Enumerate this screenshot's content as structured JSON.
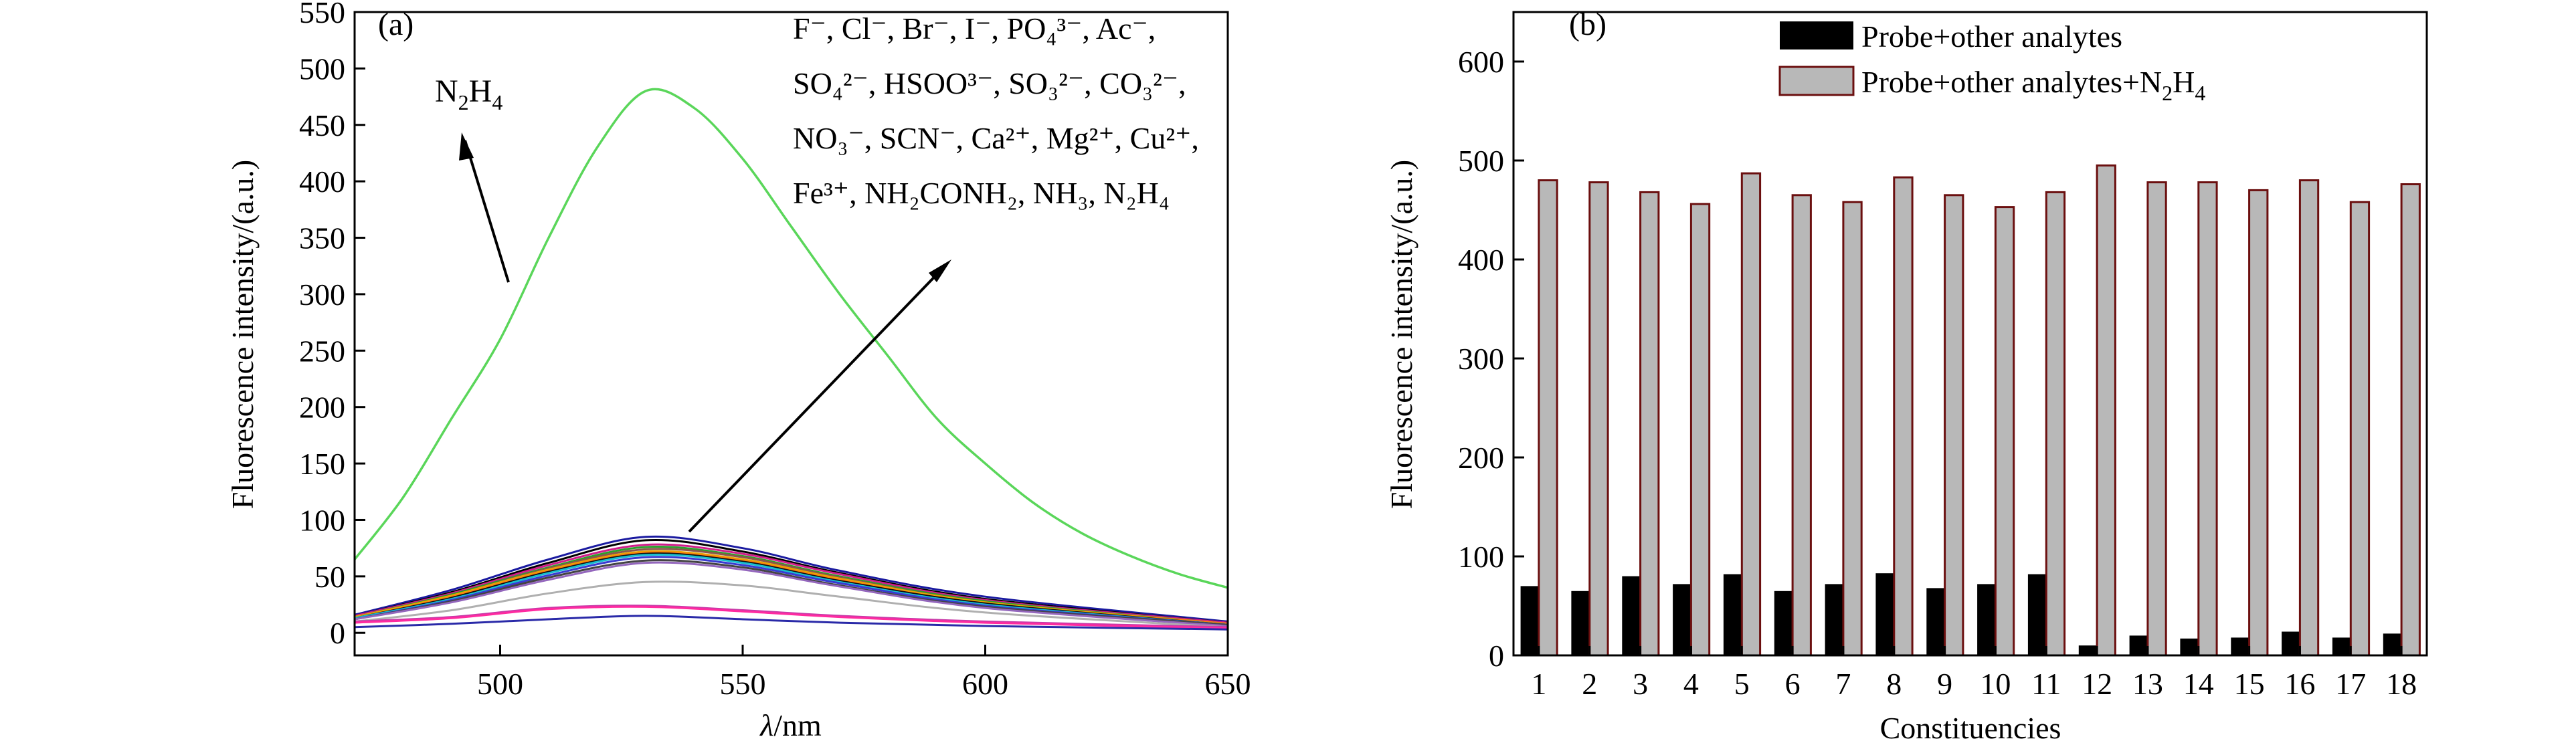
{
  "chart_data": [
    {
      "panel": "(a)",
      "type": "line",
      "xlabel_symbol": "λ",
      "xlabel_unit": "/nm",
      "ylabel": "Fluorescence intensity/(a.u.)",
      "xlim": [
        470,
        650
      ],
      "ylim": [
        -20,
        550
      ],
      "x_ticks": [
        500,
        550,
        600,
        650
      ],
      "y_ticks": [
        0,
        50,
        100,
        150,
        200,
        250,
        300,
        350,
        400,
        450,
        500,
        550
      ],
      "annotation_n2h4": {
        "base": "N",
        "sub1": "2",
        "mid": "H",
        "sub2": "4"
      },
      "annotation_list_lines": [
        "F⁻, Cl⁻, Br⁻, I⁻, PO₄³⁻, Ac⁻,",
        "SO₄²⁻, HSOO³⁻, SO₃²⁻, CO₃²⁻,",
        "NO₃⁻, SCN⁻, Ca²⁺, Mg²⁺, Cu²⁺,",
        "Fe³⁺, NH₂CONH₂, NH₃, N₂H₄"
      ],
      "series": [
        {
          "color": "#5ad65a",
          "x": [
            470,
            480,
            490,
            500,
            510,
            520,
            530,
            540,
            550,
            560,
            570,
            580,
            590,
            600,
            610,
            620,
            630,
            640,
            650
          ],
          "values": [
            65,
            120,
            190,
            260,
            350,
            430,
            480,
            465,
            420,
            360,
            300,
            245,
            190,
            150,
            115,
            88,
            68,
            52,
            40
          ]
        },
        {
          "color": "#1a1aa0",
          "x": [
            470,
            490,
            510,
            530,
            550,
            570,
            600,
            650
          ],
          "values": [
            16,
            38,
            65,
            85,
            75,
            55,
            32,
            10
          ]
        },
        {
          "color": "#000000",
          "x": [
            470,
            490,
            510,
            530,
            550,
            570,
            600,
            650
          ],
          "values": [
            15,
            36,
            62,
            82,
            72,
            53,
            30,
            9
          ]
        },
        {
          "color": "#d01c8b",
          "x": [
            470,
            490,
            510,
            530,
            550,
            570,
            600,
            650
          ],
          "values": [
            15,
            35,
            60,
            78,
            70,
            52,
            29,
            9
          ]
        },
        {
          "color": "#2ca02c",
          "x": [
            470,
            490,
            510,
            530,
            550,
            570,
            600,
            650
          ],
          "values": [
            14,
            34,
            58,
            76,
            68,
            50,
            28,
            8
          ]
        },
        {
          "color": "#8c564b",
          "x": [
            470,
            490,
            510,
            530,
            550,
            570,
            600,
            650
          ],
          "values": [
            14,
            33,
            57,
            74,
            67,
            49,
            27,
            8
          ]
        },
        {
          "color": "#e6a800",
          "x": [
            470,
            490,
            510,
            530,
            550,
            570,
            600,
            650
          ],
          "values": [
            14,
            33,
            56,
            72,
            65,
            48,
            27,
            8
          ]
        },
        {
          "color": "#ff7f0e",
          "x": [
            470,
            490,
            510,
            530,
            550,
            570,
            600,
            650
          ],
          "values": [
            13,
            32,
            55,
            71,
            64,
            47,
            26,
            8
          ]
        },
        {
          "color": "#111111",
          "x": [
            470,
            490,
            510,
            530,
            550,
            570,
            600,
            650
          ],
          "values": [
            13,
            31,
            54,
            70,
            63,
            46,
            26,
            7
          ]
        },
        {
          "color": "#17becf",
          "x": [
            470,
            490,
            510,
            530,
            550,
            570,
            600,
            650
          ],
          "values": [
            13,
            30,
            53,
            69,
            62,
            45,
            25,
            7
          ]
        },
        {
          "color": "#3a3ad0",
          "x": [
            470,
            490,
            510,
            530,
            550,
            570,
            600,
            650
          ],
          "values": [
            12,
            29,
            51,
            67,
            60,
            44,
            24,
            7
          ]
        },
        {
          "color": "#444444",
          "x": [
            470,
            490,
            510,
            530,
            550,
            570,
            600,
            650
          ],
          "values": [
            12,
            28,
            49,
            64,
            58,
            42,
            23,
            7
          ]
        },
        {
          "color": "#9467bd",
          "x": [
            470,
            490,
            510,
            530,
            550,
            570,
            600,
            650
          ],
          "values": [
            12,
            27,
            47,
            62,
            56,
            41,
            22,
            6
          ]
        },
        {
          "color": "#b0b0b0",
          "x": [
            470,
            490,
            510,
            530,
            550,
            570,
            600,
            650
          ],
          "values": [
            10,
            20,
            35,
            45,
            42,
            32,
            18,
            5
          ]
        },
        {
          "color": "#c83aa8",
          "x": [
            470,
            490,
            510,
            530,
            550,
            570,
            600,
            650
          ],
          "values": [
            10,
            14,
            22,
            24,
            20,
            15,
            10,
            5
          ]
        },
        {
          "color": "#ff2aa0",
          "x": [
            470,
            490,
            510,
            530,
            550,
            570,
            600,
            650
          ],
          "values": [
            9,
            13,
            21,
            23,
            19,
            14,
            9,
            4
          ]
        },
        {
          "color": "#2a2aa8",
          "x": [
            470,
            490,
            510,
            530,
            550,
            570,
            600,
            650
          ],
          "values": [
            5,
            8,
            12,
            15,
            12,
            9,
            6,
            3
          ]
        }
      ]
    },
    {
      "panel": "(b)",
      "type": "bar",
      "xlabel": "Constituencies",
      "ylabel": "Fluorescence intensity/(a.u.)",
      "ylim": [
        0,
        650
      ],
      "y_ticks": [
        0,
        100,
        200,
        300,
        400,
        500,
        600
      ],
      "categories": [
        "1",
        "2",
        "3",
        "4",
        "5",
        "6",
        "7",
        "8",
        "9",
        "10",
        "11",
        "12",
        "13",
        "14",
        "15",
        "16",
        "17",
        "18"
      ],
      "legend_position": "top",
      "series": [
        {
          "name": "Probe+other analytes",
          "color": "#000000",
          "values": [
            70,
            65,
            80,
            72,
            82,
            65,
            72,
            83,
            68,
            72,
            82,
            10,
            20,
            17,
            18,
            24,
            18,
            22
          ]
        },
        {
          "name_prefix": "Probe+other analytes+N",
          "name_sub1": "2",
          "name_mid": "H",
          "name_sub2": "4",
          "color": "#b8b8b8",
          "values": [
            480,
            478,
            468,
            456,
            487,
            465,
            458,
            483,
            465,
            453,
            468,
            495,
            478,
            478,
            470,
            480,
            458,
            476
          ]
        }
      ]
    }
  ]
}
